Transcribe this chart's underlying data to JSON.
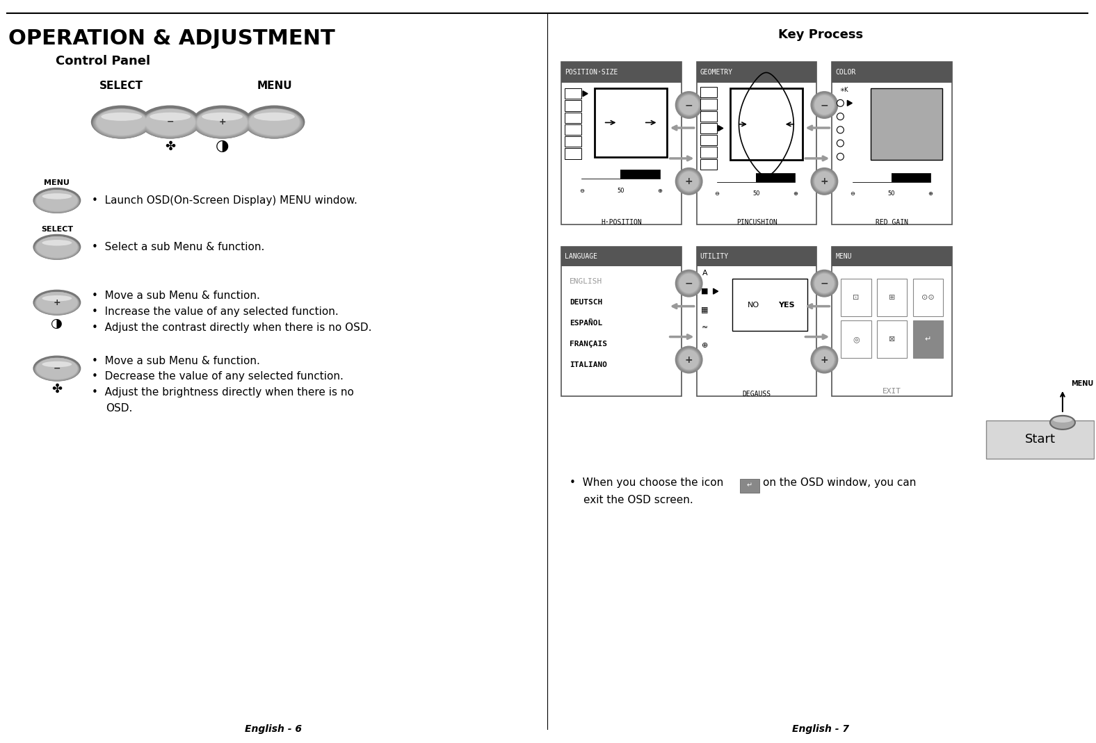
{
  "bg_color": "#ffffff",
  "left_title": "OPERATION & ADJUSTMENT",
  "subtitle": "Control Panel",
  "key_process_title": "Key Process",
  "footer_left": "English - 6",
  "footer_right": "English - 7"
}
